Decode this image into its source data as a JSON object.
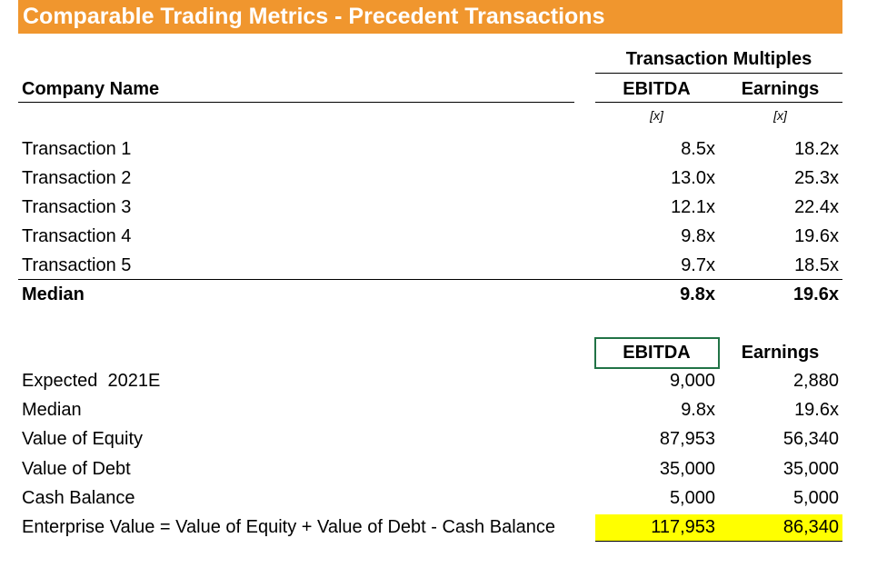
{
  "title": "Comparable Trading Metrics - Precedent Transactions",
  "header": {
    "group": "Transaction Multiples",
    "company": "Company Name",
    "columns": [
      "EBITDA",
      "Earnings"
    ],
    "units": [
      "[x]",
      "[x]"
    ]
  },
  "transactions": {
    "rows": [
      [
        "Transaction 1",
        "8.5x",
        "18.2x"
      ],
      [
        "Transaction 2",
        "13.0x",
        "25.3x"
      ],
      [
        "Transaction 3",
        "12.1x",
        "22.4x"
      ],
      [
        "Transaction 4",
        "9.8x",
        "19.6x"
      ],
      [
        "Transaction 5",
        "9.7x",
        "18.5x"
      ]
    ],
    "median": [
      "Median",
      "9.8x",
      "19.6x"
    ]
  },
  "valuation": {
    "columns": [
      "EBITDA",
      "Earnings"
    ],
    "rows": [
      [
        "Expected  2021E",
        "9,000",
        "2,880"
      ],
      [
        "Median",
        "9.8x",
        "19.6x"
      ],
      [
        "Value of Equity",
        "87,953",
        "56,340"
      ],
      [
        "Value of Debt",
        "35,000",
        "35,000"
      ],
      [
        "Cash Balance",
        "5,000",
        "5,000"
      ],
      [
        "Enterprise Value = Value of Equity + Value of Debt - Cash Balance",
        "117,953",
        "86,340"
      ]
    ]
  }
}
